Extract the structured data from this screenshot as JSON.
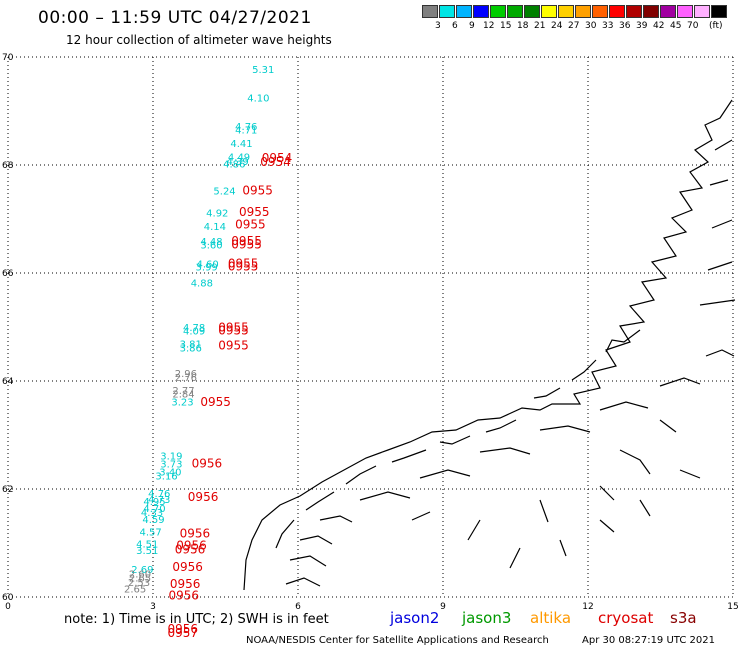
{
  "header": {
    "title": "00:00  –  11:59 UTC 04/27/2021",
    "subtitle": "12 hour collection of altimeter wave heights"
  },
  "colorbar": {
    "unit": "(ft)",
    "colors": [
      "#808080",
      "#00e5e5",
      "#00b4ff",
      "#0000ff",
      "#00cc00",
      "#00aa00",
      "#008000",
      "#ffff00",
      "#ffd000",
      "#ffa000",
      "#ff6000",
      "#ff0000",
      "#b00000",
      "#800000",
      "#a000a0",
      "#ff60ff",
      "#ffb0ff",
      "#000000"
    ],
    "labels": [
      "3",
      "6",
      "9",
      "12",
      "15",
      "18",
      "21",
      "24",
      "27",
      "30",
      "33",
      "36",
      "39",
      "42",
      "45",
      "70"
    ]
  },
  "axes": {
    "x_ticks": [
      "0",
      "3",
      "6",
      "9",
      "12",
      "15"
    ],
    "y_ticks": [
      "70",
      "68",
      "66",
      "64",
      "62",
      "60"
    ],
    "x_range": [
      0,
      15
    ],
    "y_range": [
      60,
      70
    ]
  },
  "footer": {
    "note": "note:  1) Time is in UTC;  2) SWH is in feet",
    "satellites": [
      {
        "name": "jason2",
        "color": "#0000dd"
      },
      {
        "name": "jason3",
        "color": "#009900"
      },
      {
        "name": "altika",
        "color": "#ff9900"
      },
      {
        "name": "cryosat",
        "color": "#dd0000"
      },
      {
        "name": "s3a",
        "color": "#880000"
      }
    ],
    "credit": "NOAA/NESDIS Center for Satellite Applications and Research",
    "timestamp": "Apr 30 08:27:19 UTC 2021"
  },
  "observations": {
    "swh": [
      {
        "lon": 5.05,
        "lat": 69.7,
        "v": "5.31",
        "c": "#00cccc"
      },
      {
        "lon": 4.95,
        "lat": 69.18,
        "v": "4.10",
        "c": "#00cccc"
      },
      {
        "lon": 4.7,
        "lat": 68.65,
        "v": "4.76",
        "c": "#00cccc"
      },
      {
        "lon": 4.7,
        "lat": 68.58,
        "v": "4.71",
        "c": "#00cccc"
      },
      {
        "lon": 4.6,
        "lat": 68.33,
        "v": "4.41",
        "c": "#00cccc"
      },
      {
        "lon": 4.55,
        "lat": 68.08,
        "v": "4.49",
        "c": "#00cccc"
      },
      {
        "lon": 4.52,
        "lat": 68.0,
        "v": "4.39",
        "c": "#00cccc"
      },
      {
        "lon": 4.45,
        "lat": 67.95,
        "v": "4.86",
        "c": "#00cccc"
      },
      {
        "lon": 4.25,
        "lat": 67.45,
        "v": "5.24",
        "c": "#00cccc"
      },
      {
        "lon": 4.1,
        "lat": 67.05,
        "v": "4.92",
        "c": "#00cccc"
      },
      {
        "lon": 4.05,
        "lat": 66.8,
        "v": "4.14",
        "c": "#00cccc"
      },
      {
        "lon": 3.98,
        "lat": 66.52,
        "v": "4.48",
        "c": "#00cccc"
      },
      {
        "lon": 3.98,
        "lat": 66.45,
        "v": "3.60",
        "c": "#00cccc"
      },
      {
        "lon": 3.9,
        "lat": 66.1,
        "v": "4.60",
        "c": "#00cccc"
      },
      {
        "lon": 3.88,
        "lat": 66.05,
        "v": "3.99",
        "c": "#00cccc"
      },
      {
        "lon": 3.78,
        "lat": 65.75,
        "v": "4.88",
        "c": "#00cccc"
      },
      {
        "lon": 3.62,
        "lat": 64.93,
        "v": "4.78",
        "c": "#00cccc"
      },
      {
        "lon": 3.62,
        "lat": 64.86,
        "v": "4.09",
        "c": "#00cccc"
      },
      {
        "lon": 3.55,
        "lat": 64.62,
        "v": "3.81",
        "c": "#00cccc"
      },
      {
        "lon": 3.55,
        "lat": 64.55,
        "v": "3.86",
        "c": "#00cccc"
      },
      {
        "lon": 3.45,
        "lat": 64.07,
        "v": "2.96",
        "c": "#808080"
      },
      {
        "lon": 3.45,
        "lat": 64.0,
        "v": "2.76",
        "c": "#808080"
      },
      {
        "lon": 3.4,
        "lat": 63.76,
        "v": "2.77",
        "c": "#808080"
      },
      {
        "lon": 3.4,
        "lat": 63.69,
        "v": "2.84",
        "c": "#808080"
      },
      {
        "lon": 3.38,
        "lat": 63.55,
        "v": "3.23",
        "c": "#00cccc"
      },
      {
        "lon": 3.15,
        "lat": 62.55,
        "v": "3.19",
        "c": "#00cccc"
      },
      {
        "lon": 3.15,
        "lat": 62.4,
        "v": "3.73",
        "c": "#00cccc"
      },
      {
        "lon": 3.13,
        "lat": 62.25,
        "v": "3.40",
        "c": "#00cccc"
      },
      {
        "lon": 3.05,
        "lat": 62.18,
        "v": "3.16",
        "c": "#00cccc"
      },
      {
        "lon": 2.9,
        "lat": 61.85,
        "v": "4.76",
        "c": "#00cccc"
      },
      {
        "lon": 2.9,
        "lat": 61.74,
        "v": "4.73",
        "c": "#00cccc"
      },
      {
        "lon": 2.8,
        "lat": 61.7,
        "v": "4.95",
        "c": "#00cccc"
      },
      {
        "lon": 2.8,
        "lat": 61.57,
        "v": "4.70",
        "c": "#00cccc"
      },
      {
        "lon": 2.75,
        "lat": 61.5,
        "v": "4.33",
        "c": "#00cccc"
      },
      {
        "lon": 2.78,
        "lat": 61.37,
        "v": "4.59",
        "c": "#00cccc"
      },
      {
        "lon": 2.72,
        "lat": 61.14,
        "v": "4.57",
        "c": "#00cccc"
      },
      {
        "lon": 2.65,
        "lat": 60.92,
        "v": "4.51",
        "c": "#00cccc"
      },
      {
        "lon": 2.65,
        "lat": 60.8,
        "v": "3.51",
        "c": "#00cccc"
      },
      {
        "lon": 2.55,
        "lat": 60.44,
        "v": "2.69",
        "c": "#00cccc"
      },
      {
        "lon": 2.5,
        "lat": 60.36,
        "v": "2.60",
        "c": "#808080"
      },
      {
        "lon": 2.5,
        "lat": 60.29,
        "v": "2.65",
        "c": "#808080"
      },
      {
        "lon": 2.48,
        "lat": 60.2,
        "v": "2.53",
        "c": "#808080"
      },
      {
        "lon": 2.4,
        "lat": 60.08,
        "v": "2.65",
        "c": "#808080"
      }
    ],
    "times": [
      {
        "lon": 5.25,
        "lat": 68.06,
        "v": "0954"
      },
      {
        "lon": 5.22,
        "lat": 67.98,
        "v": "0954"
      },
      {
        "lon": 4.85,
        "lat": 67.45,
        "v": "0955"
      },
      {
        "lon": 4.78,
        "lat": 67.06,
        "v": "0955"
      },
      {
        "lon": 4.7,
        "lat": 66.82,
        "v": "0955"
      },
      {
        "lon": 4.62,
        "lat": 66.52,
        "v": "0955"
      },
      {
        "lon": 4.62,
        "lat": 66.45,
        "v": "0955"
      },
      {
        "lon": 4.55,
        "lat": 66.1,
        "v": "0955"
      },
      {
        "lon": 4.55,
        "lat": 66.05,
        "v": "0955"
      },
      {
        "lon": 4.35,
        "lat": 64.92,
        "v": "0955"
      },
      {
        "lon": 4.35,
        "lat": 64.86,
        "v": "0955"
      },
      {
        "lon": 4.35,
        "lat": 64.58,
        "v": "0955"
      },
      {
        "lon": 3.98,
        "lat": 63.54,
        "v": "0955"
      },
      {
        "lon": 3.8,
        "lat": 62.4,
        "v": "0956"
      },
      {
        "lon": 3.72,
        "lat": 61.78,
        "v": "0956"
      },
      {
        "lon": 3.55,
        "lat": 61.1,
        "v": "0956"
      },
      {
        "lon": 3.48,
        "lat": 60.88,
        "v": "0956"
      },
      {
        "lon": 3.45,
        "lat": 60.81,
        "v": "0956"
      },
      {
        "lon": 3.4,
        "lat": 60.48,
        "v": "0956"
      },
      {
        "lon": 3.35,
        "lat": 60.17,
        "v": "0956"
      },
      {
        "lon": 3.32,
        "lat": 59.95,
        "v": "0956"
      },
      {
        "lon": 3.3,
        "lat": 59.33,
        "v": "0956"
      },
      {
        "lon": 3.3,
        "lat": 59.26,
        "v": "0957"
      }
    ]
  }
}
